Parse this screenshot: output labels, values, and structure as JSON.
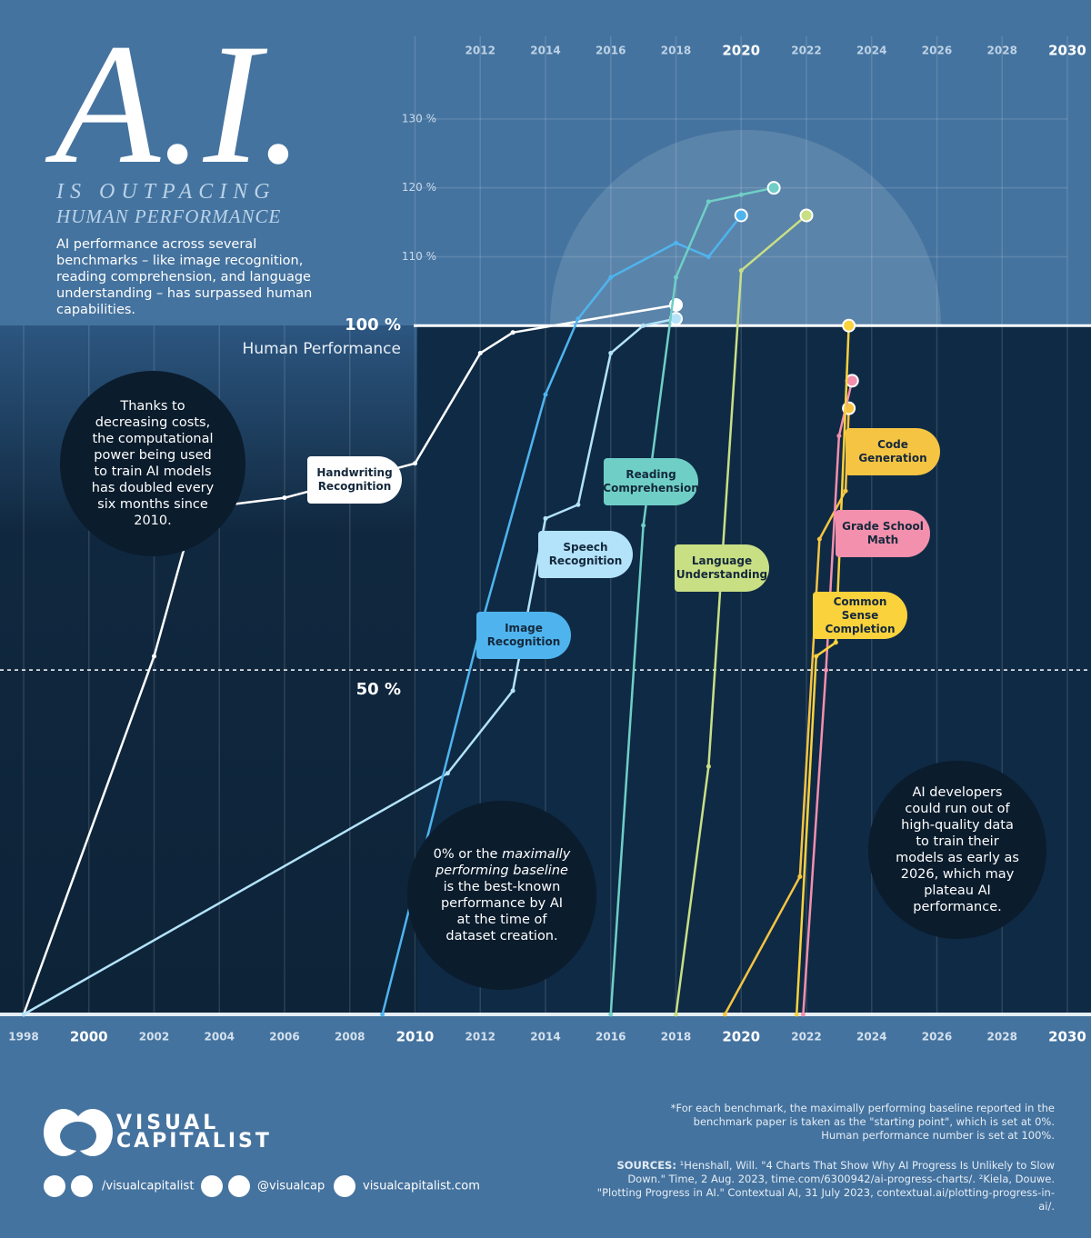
{
  "header": {
    "title": "A.I.",
    "subtitle_1": "IS OUTPACING",
    "subtitle_2": "HUMAN PERFORMANCE",
    "description": "AI performance across several benchmarks – like image recognition, reading comprehension, and language understanding – has surpassed human capabilities."
  },
  "chart_data": {
    "type": "line",
    "xlim": [
      1998,
      2030
    ],
    "ylim": [
      0,
      135
    ],
    "xticks": [
      1998,
      2000,
      2002,
      2004,
      2006,
      2008,
      2010,
      2012,
      2014,
      2016,
      2018,
      2020,
      2022,
      2024,
      2026,
      2028,
      2030
    ],
    "yticks": [
      {
        "value": 50,
        "label": "50 %"
      },
      {
        "value": 100,
        "label": "100 %"
      },
      {
        "value": 110,
        "label": "110 %"
      },
      {
        "value": 120,
        "label": "120 %"
      },
      {
        "value": 130,
        "label": "130 %"
      }
    ],
    "reference_label": "Human Performance",
    "series": [
      {
        "name": "Handwriting Recognition",
        "color": "#ffffff",
        "x": [
          1998,
          2002,
          2003,
          2004.3,
          2006,
          2010,
          2012,
          2013,
          2018
        ],
        "values": [
          0,
          52,
          69,
          74,
          75,
          80,
          96,
          99,
          103
        ]
      },
      {
        "name": "Speech Recognition",
        "color": "#b3e3fa",
        "x": [
          1998,
          2011,
          2013,
          2014,
          2015,
          2016,
          2017,
          2018
        ],
        "values": [
          0,
          35,
          47,
          72,
          74,
          96,
          100,
          101
        ]
      },
      {
        "name": "Image Recognition",
        "color": "#4fb4ee",
        "x": [
          2009,
          2012,
          2014,
          2015,
          2016,
          2018,
          2019,
          2020
        ],
        "values": [
          0,
          56,
          90,
          101,
          107,
          112,
          110,
          116
        ]
      },
      {
        "name": "Reading Comprehension",
        "color": "#6fcfc6",
        "x": [
          2016,
          2017,
          2018,
          2019,
          2020,
          2021
        ],
        "values": [
          0,
          71,
          107,
          118,
          119,
          120
        ]
      },
      {
        "name": "Language Understanding",
        "color": "#c9df84",
        "x": [
          2018,
          2019,
          2020,
          2022
        ],
        "values": [
          0,
          36,
          108,
          116
        ]
      },
      {
        "name": "Code Generation",
        "color": "#f6c443",
        "x": [
          2019.5,
          2021.8,
          2022.4,
          2023.2,
          2023.3
        ],
        "values": [
          0,
          20,
          69,
          76,
          88
        ]
      },
      {
        "name": "Grade School Math",
        "color": "#f390ad",
        "x": [
          2021.9,
          2022.6,
          2023,
          2023.4
        ],
        "values": [
          0,
          50,
          84,
          92
        ]
      },
      {
        "name": "Common Sense Completion",
        "color": "#fad23c",
        "x": [
          2021.7,
          2022.3,
          2022.9,
          2023.3
        ],
        "values": [
          0,
          52,
          54,
          100
        ]
      }
    ],
    "annotations": [
      {
        "parts": [
          "Thanks to decreasing costs, the computational power being used to train AI models has doubled every six months since 2010."
        ]
      },
      {
        "parts": [
          "0% or the",
          "maximally performing baseline",
          "is the best-known performance by AI at the time of dataset creation."
        ]
      },
      {
        "parts": [
          "AI developers could run out of high-quality data to train their models as early as 2026, which may plateau AI performance."
        ]
      }
    ]
  },
  "footnote": "*For each benchmark, the maximally performing baseline reported in the benchmark paper is taken as the \"starting point\", which is set at 0%. Human performance number is set at 100%.",
  "sources": {
    "label": "SOURCES:",
    "text": "¹Henshall, Will. \"4 Charts That Show Why AI Progress Is Unlikely to Slow Down.\" Time, 2 Aug. 2023, time.com/6300942/ai-progress-charts/. ²Kiela, Douwe. \"Plotting Progress in AI.\" Contextual AI, 31 July 2023, contextual.ai/plotting-progress-in-ai/."
  },
  "footer": {
    "brand_1": "VISUAL",
    "brand_2": "CAPITALIST",
    "social_1": "/visualcapitalist",
    "social_2": "@visualcap",
    "website": "visualcapitalist.com"
  }
}
